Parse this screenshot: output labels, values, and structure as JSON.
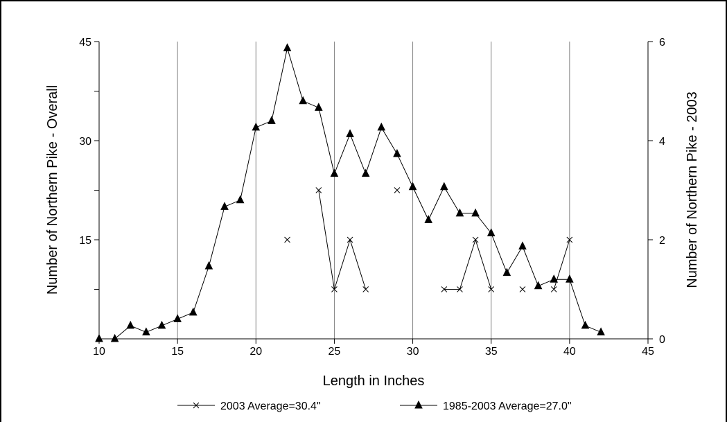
{
  "chart_data": {
    "type": "line",
    "xlabel": "Length in Inches",
    "ylabel_left": "Number of Northern Pike - Overall",
    "ylabel_right": "Number of Northern Pike - 2003",
    "xlim": [
      10,
      45
    ],
    "x_ticks": [
      10,
      15,
      20,
      25,
      30,
      35,
      40,
      45
    ],
    "ylim_left": [
      0,
      45
    ],
    "y_ticks_left": [
      15,
      30,
      45
    ],
    "y_minor_left": [
      7.5,
      22.5,
      37.5
    ],
    "ylim_right": [
      0,
      6
    ],
    "y_ticks_right": [
      0,
      2,
      4,
      6
    ],
    "grid": "vertical",
    "legend_position": "bottom",
    "series": [
      {
        "name": "2003 Average=30.4\"",
        "axis": "right",
        "marker": "x",
        "color": "#000000",
        "segments": [
          [
            [
              22,
              2
            ]
          ],
          [
            [
              24,
              3
            ],
            [
              25,
              1
            ],
            [
              26,
              2
            ],
            [
              27,
              1
            ]
          ],
          [
            [
              29,
              3
            ]
          ],
          [
            [
              32,
              1
            ],
            [
              33,
              1
            ],
            [
              34,
              2
            ],
            [
              35,
              1
            ]
          ],
          [
            [
              37,
              1
            ]
          ],
          [
            [
              39,
              1
            ],
            [
              40,
              2
            ]
          ]
        ]
      },
      {
        "name": "1985-2003 Average=27.0\"",
        "axis": "left",
        "marker": "triangle",
        "color": "#000000",
        "x": [
          10,
          11,
          12,
          13,
          14,
          15,
          16,
          17,
          18,
          19,
          20,
          21,
          22,
          23,
          24,
          25,
          26,
          27,
          28,
          29,
          30,
          31,
          32,
          33,
          34,
          35,
          36,
          37,
          38,
          39,
          40,
          41,
          42
        ],
        "y": [
          0,
          0,
          2,
          1,
          2,
          3,
          4,
          11,
          20,
          21,
          32,
          33,
          44,
          36,
          35,
          25,
          31,
          25,
          32,
          28,
          23,
          18,
          23,
          19,
          19,
          16,
          10,
          14,
          8,
          9,
          9,
          2,
          1
        ]
      }
    ]
  }
}
